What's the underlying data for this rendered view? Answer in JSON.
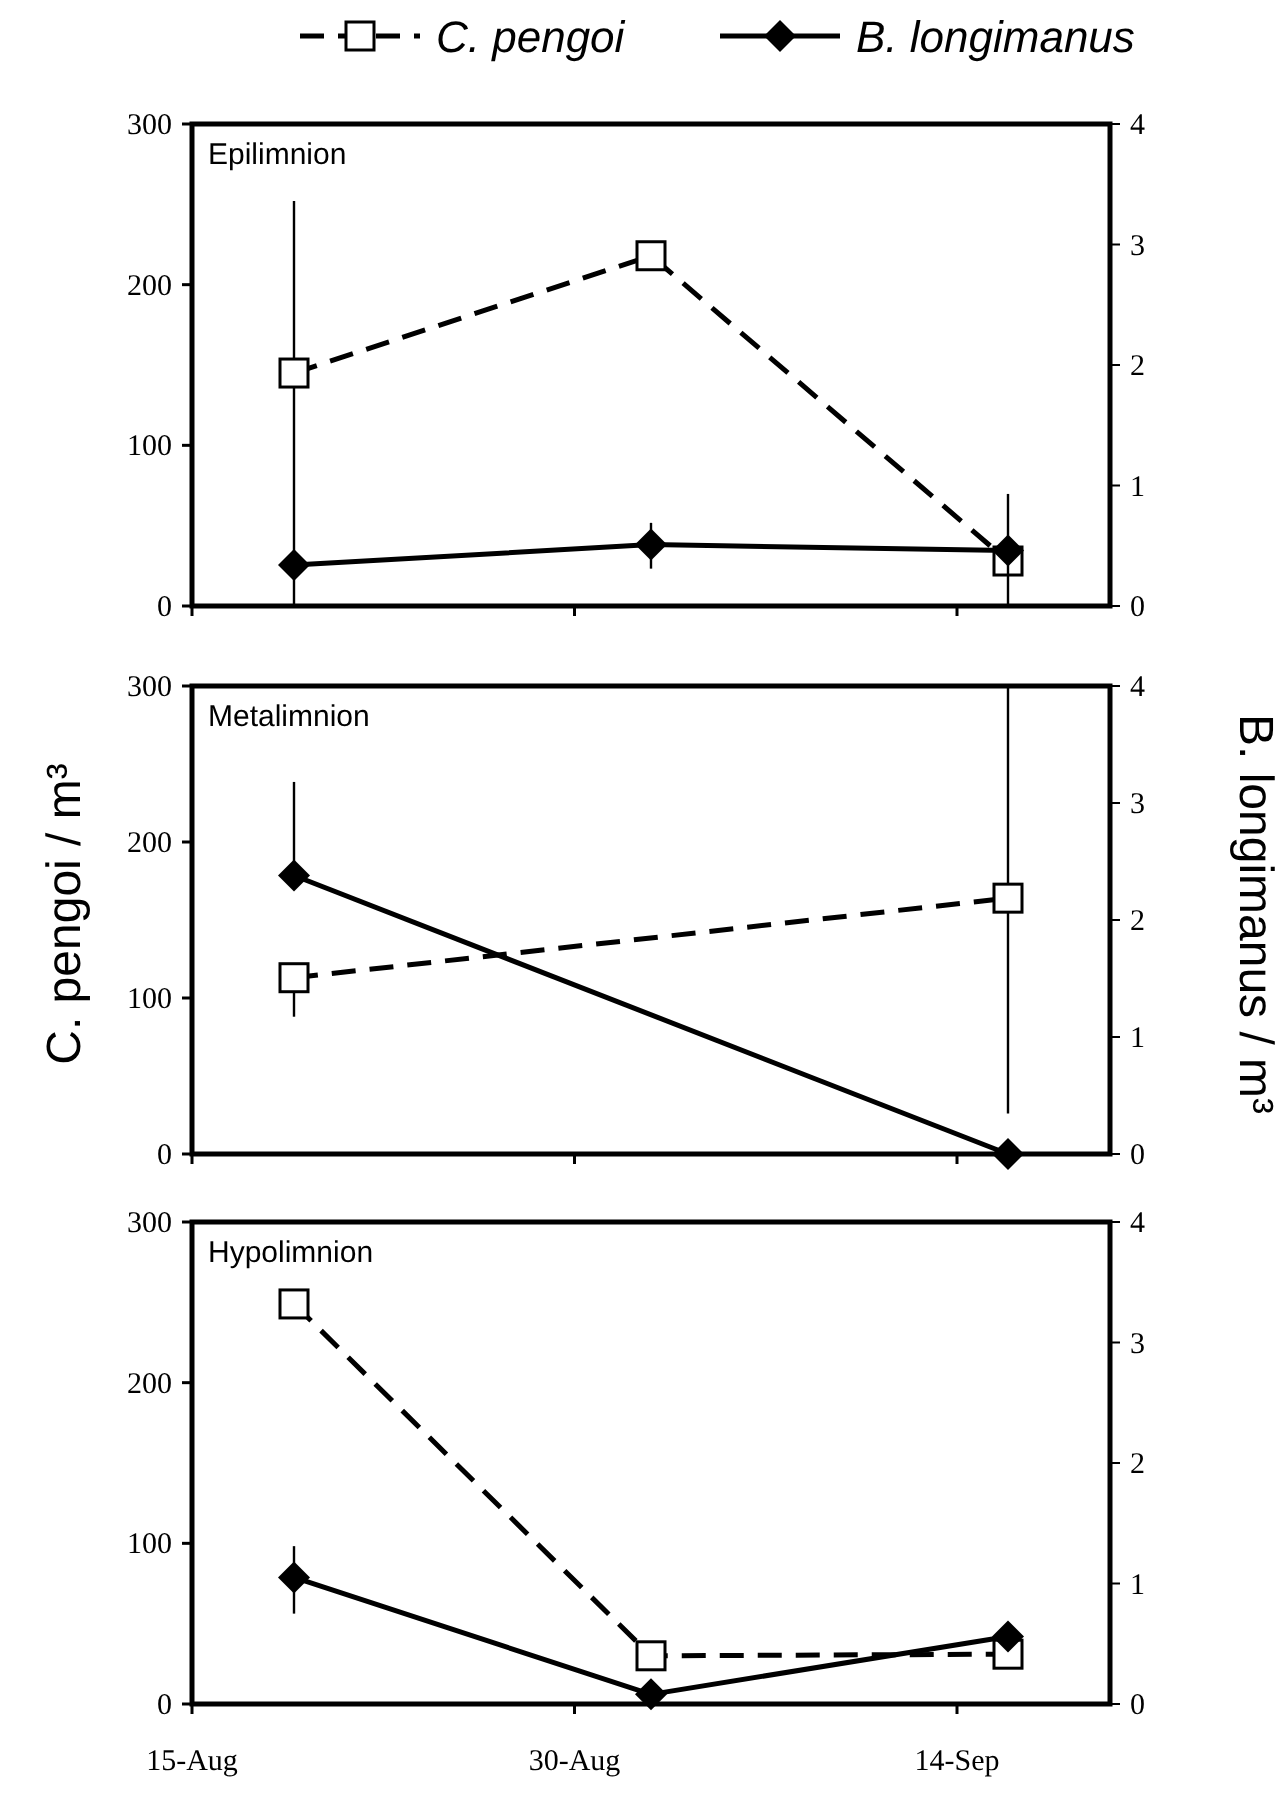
{
  "chart_data": [
    {
      "type": "line",
      "title": "Epilimnion",
      "x": [
        "--08-19",
        "--09-02",
        "--09-16"
      ],
      "xlim": [
        "--08-15",
        "--09-20"
      ],
      "xticks": [
        {
          "value": "--08-15",
          "label": null
        },
        {
          "value": "--08-30",
          "label": null
        },
        {
          "value": "--09-14",
          "label": null
        }
      ],
      "ylim": [
        0,
        300
      ],
      "yticks": [
        0,
        100,
        200,
        300
      ],
      "y2lim": [
        0,
        4
      ],
      "y2ticks": [
        0,
        1,
        2,
        3,
        4
      ],
      "tick_labels": "y",
      "legend": "top",
      "series": [
        {
          "name": "C. pengoi",
          "color": "#000000",
          "marker": "square",
          "line_style": "dashed",
          "values": [
            145,
            218,
            28
          ],
          "errors": [
            [
              0,
              252
            ],
            null,
            null
          ]
        },
        {
          "name": "B. longimanus",
          "color": "#000000",
          "marker": "diamond",
          "line_style": "solid",
          "axis": "y2",
          "values": [
            0.34,
            0.51,
            0.46
          ],
          "errors": [
            null,
            [
              0.31,
              0.69
            ],
            [
              0,
              0.93
            ]
          ]
        }
      ]
    },
    {
      "type": "line",
      "title": "Metalimnion",
      "ylabel": "C. pengoi / m³",
      "y2label": "B. longimanus / m³",
      "x": [
        "--08-19",
        "--09-16"
      ],
      "xlim": [
        "--08-15",
        "--09-20"
      ],
      "xticks": [
        {
          "value": "--08-15",
          "label": null
        },
        {
          "value": "--08-30",
          "label": null
        },
        {
          "value": "--09-14",
          "label": null
        }
      ],
      "ylim": [
        0,
        300
      ],
      "yticks": [
        0,
        100,
        200,
        300
      ],
      "y2lim": [
        0,
        4
      ],
      "y2ticks": [
        0,
        1,
        2,
        3,
        4
      ],
      "tick_labels": "y",
      "series": [
        {
          "color": "#000000",
          "marker": "square",
          "line_style": "dashed",
          "values": [
            113,
            164
          ],
          "errors": [
            [
              88,
              113
            ],
            [
              26,
              300
            ]
          ]
        },
        {
          "color": "#000000",
          "marker": "diamond",
          "line_style": "solid",
          "axis": "y2",
          "values": [
            2.38,
            0
          ],
          "errors": [
            [
              2.38,
              3.18
            ],
            null
          ]
        }
      ]
    },
    {
      "type": "line",
      "title": "Hypolimnion",
      "x": [
        "--08-19",
        "--09-02",
        "--09-16"
      ],
      "xlim": [
        "--08-15",
        "--09-20"
      ],
      "xticks": [
        {
          "value": "--08-15",
          "label": "15-Aug"
        },
        {
          "value": "--08-30",
          "label": "30-Aug"
        },
        {
          "value": "--09-14",
          "label": "14-Sep"
        }
      ],
      "ylim": [
        0,
        300
      ],
      "yticks": [
        0,
        100,
        200,
        300
      ],
      "y2lim": [
        0,
        4
      ],
      "y2ticks": [
        0,
        1,
        2,
        3,
        4
      ],
      "series": [
        {
          "color": "#000000",
          "marker": "square",
          "line_style": "dashed",
          "values": [
            249,
            30,
            31
          ]
        },
        {
          "color": "#000000",
          "marker": "diamond",
          "line_style": "solid",
          "axis": "y2",
          "values": [
            1.05,
            0.08,
            0.56
          ],
          "errors": [
            [
              0.75,
              1.31
            ],
            null,
            null
          ]
        }
      ]
    }
  ]
}
